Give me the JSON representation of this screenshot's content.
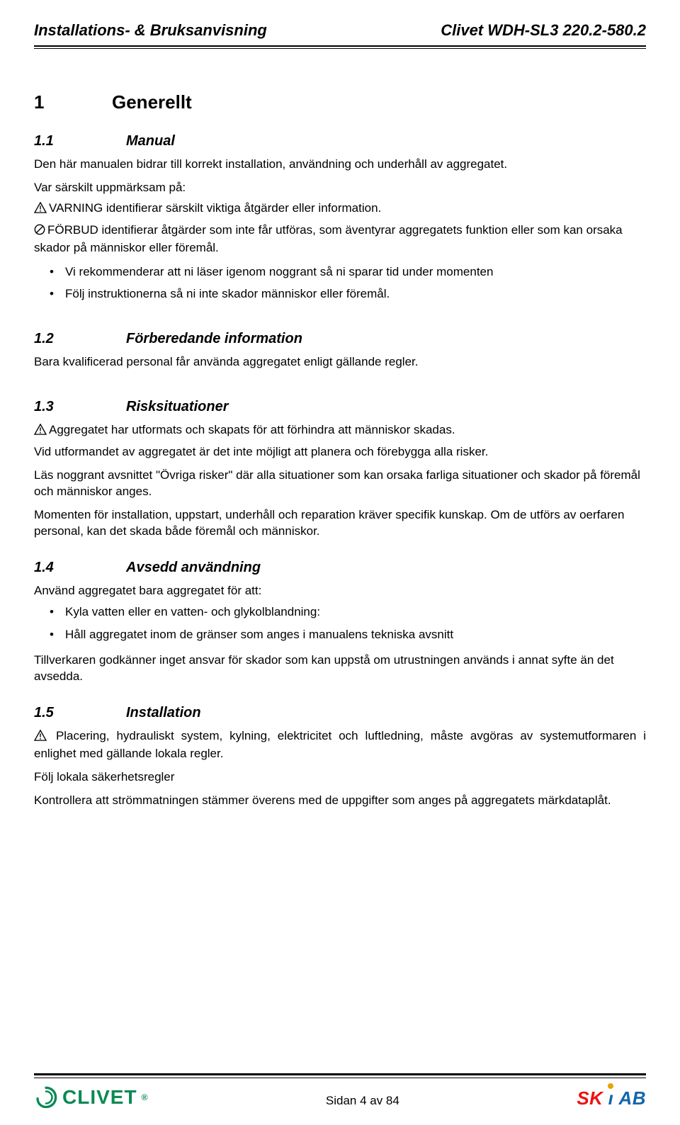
{
  "header": {
    "left": "Installations- & Bruksanvisning",
    "right": "Clivet WDH-SL3 220.2-580.2"
  },
  "section1": {
    "num": "1",
    "title": "Generellt"
  },
  "s11": {
    "num": "1.1",
    "title": "Manual",
    "p1": "Den här manualen bidrar till korrekt installation, användning och underhåll av aggregatet.",
    "p2": "Var särskilt uppmärksam på:",
    "p3": "VARNING identifierar särskilt viktiga åtgärder eller information.",
    "p4": "FÖRBUD identifierar åtgärder som inte får utföras, som äventyrar aggregatets funktion eller som kan orsaka skador på människor eller föremål.",
    "b1": "Vi rekommenderar att ni läser igenom noggrant så ni sparar tid under momenten",
    "b2": "Följ instruktionerna så ni inte skador människor eller föremål."
  },
  "s12": {
    "num": "1.2",
    "title": "Förberedande information",
    "p1": "Bara kvalificerad personal får använda aggregatet enligt gällande regler."
  },
  "s13": {
    "num": "1.3",
    "title": "Risksituationer",
    "p1": "Aggregatet har utformats och skapats för att förhindra att människor skadas.",
    "p2": "Vid utformandet av aggregatet är det inte möjligt att planera och förebygga alla risker.",
    "p3": "Läs noggrant avsnittet \"Övriga risker\" där alla situationer som kan orsaka farliga situationer och skador på föremål och människor anges.",
    "p4": "Momenten för installation, uppstart, underhåll och reparation kräver specifik kunskap. Om de utförs av oerfaren personal, kan det skada både föremål och människor."
  },
  "s14": {
    "num": "1.4",
    "title": "Avsedd användning",
    "p1": "Använd aggregatet bara aggregatet för att:",
    "b1": "Kyla vatten eller en vatten- och glykolblandning:",
    "b2": "Håll aggregatet inom de gränser som anges i manualens tekniska avsnitt",
    "p2": "Tillverkaren godkänner inget ansvar för skador som kan uppstå om utrustningen används i annat syfte än det avsedda."
  },
  "s15": {
    "num": "1.5",
    "title": "Installation",
    "p1": "Placering, hydrauliskt system, kylning, elektricitet och luftledning, måste avgöras av systemutformaren i enlighet med gällande lokala regler.",
    "p2": "Följ lokala säkerhetsregler",
    "p3": "Kontrollera att strömmatningen stämmer överens med de uppgifter som anges på aggregatets märkdataplåt."
  },
  "footer": {
    "page": "Sidan 4 av 84",
    "clivet": "CLIVET",
    "skiab": {
      "s": "S",
      "k": "K",
      "i": "i",
      "a": "A",
      "b": "B"
    }
  }
}
